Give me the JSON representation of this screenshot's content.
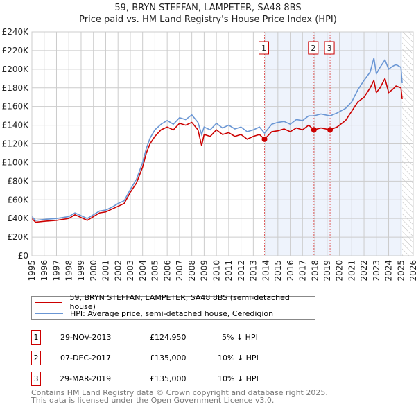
{
  "chart_data": {
    "type": "line",
    "title": "59, BRYN STEFFAN, LAMPETER, SA48 8BS",
    "subtitle": "Price paid vs. HM Land Registry's House Price Index (HPI)",
    "xlim": [
      1995,
      2026
    ],
    "ylim": [
      0,
      240000
    ],
    "x_ticks": [
      "1995",
      "1996",
      "1997",
      "1998",
      "1999",
      "2000",
      "2001",
      "2002",
      "2003",
      "2004",
      "2005",
      "2006",
      "2007",
      "2008",
      "2009",
      "2010",
      "2011",
      "2012",
      "2013",
      "2014",
      "2015",
      "2016",
      "2017",
      "2018",
      "2019",
      "2020",
      "2021",
      "2022",
      "2023",
      "2024",
      "2025",
      "2026"
    ],
    "y_ticks": [
      {
        "v": 0,
        "label": "£0"
      },
      {
        "v": 20000,
        "label": "£20K"
      },
      {
        "v": 40000,
        "label": "£40K"
      },
      {
        "v": 60000,
        "label": "£60K"
      },
      {
        "v": 80000,
        "label": "£80K"
      },
      {
        "v": 100000,
        "label": "£100K"
      },
      {
        "v": 120000,
        "label": "£120K"
      },
      {
        "v": 140000,
        "label": "£140K"
      },
      {
        "v": 160000,
        "label": "£160K"
      },
      {
        "v": 180000,
        "label": "£180K"
      },
      {
        "v": 200000,
        "label": "£200K"
      },
      {
        "v": 220000,
        "label": "£220K"
      },
      {
        "v": 240000,
        "label": "£240K"
      }
    ],
    "grid": true,
    "shaded_range": [
      2013.91,
      2025.1
    ],
    "hatched_from": 2025.1,
    "series": [
      {
        "name": "59, BRYN STEFFAN, LAMPETER, SA48 8BS (semi-detached house)",
        "color": "#cc0000",
        "x": [
          1995,
          1995.3,
          1996,
          1997,
          1998,
          1998.5,
          1999,
          1999.5,
          2000,
          2000.5,
          2001,
          2001.5,
          2002,
          2002.5,
          2003,
          2003.5,
          2004,
          2004.3,
          2004.6,
          2005,
          2005.5,
          2006,
          2006.5,
          2007,
          2007.5,
          2008,
          2008.5,
          2008.8,
          2009,
          2009.5,
          2010,
          2010.5,
          2011,
          2011.5,
          2012,
          2012.5,
          2013,
          2013.5,
          2013.91,
          2014.5,
          2015,
          2015.5,
          2016,
          2016.5,
          2017,
          2017.5,
          2017.93,
          2018.5,
          2019.24,
          2019.8,
          2020.5,
          2021,
          2021.5,
          2022,
          2022.5,
          2022.8,
          2023,
          2023.3,
          2023.7,
          2024,
          2024.3,
          2024.6,
          2025,
          2025.1
        ],
        "y": [
          40000,
          36000,
          37000,
          38000,
          40000,
          44000,
          41000,
          38000,
          42000,
          46000,
          47000,
          50000,
          53000,
          56000,
          68000,
          78000,
          95000,
          110000,
          120000,
          128000,
          135000,
          138000,
          135000,
          142000,
          140000,
          143000,
          135000,
          118000,
          130000,
          128000,
          135000,
          130000,
          132000,
          128000,
          130000,
          125000,
          128000,
          130000,
          124950,
          133000,
          134000,
          136000,
          133000,
          137000,
          135000,
          140000,
          135000,
          137000,
          135000,
          138000,
          145000,
          155000,
          165000,
          170000,
          180000,
          188000,
          175000,
          180000,
          190000,
          175000,
          178000,
          182000,
          180000,
          168000
        ]
      },
      {
        "name": "HPI: Average price, semi-detached house, Ceredigion",
        "color": "#6a96d4",
        "x": [
          1995,
          1995.3,
          1996,
          1997,
          1998,
          1998.5,
          1999,
          1999.5,
          2000,
          2000.5,
          2001,
          2001.5,
          2002,
          2002.5,
          2003,
          2003.5,
          2004,
          2004.3,
          2004.6,
          2005,
          2005.5,
          2006,
          2006.5,
          2007,
          2007.5,
          2008,
          2008.5,
          2008.8,
          2009,
          2009.5,
          2010,
          2010.5,
          2011,
          2011.5,
          2012,
          2012.5,
          2013,
          2013.5,
          2013.91,
          2014.5,
          2015,
          2015.5,
          2016,
          2016.5,
          2017,
          2017.5,
          2017.93,
          2018.5,
          2019.24,
          2019.8,
          2020.5,
          2021,
          2021.5,
          2022,
          2022.5,
          2022.8,
          2023,
          2023.3,
          2023.7,
          2024,
          2024.3,
          2024.6,
          2025,
          2025.1
        ],
        "y": [
          42000,
          38000,
          39000,
          40000,
          42000,
          46000,
          43000,
          40000,
          44000,
          48000,
          49000,
          52000,
          56000,
          59000,
          71000,
          82000,
          100000,
          115000,
          126000,
          135000,
          141000,
          145000,
          141000,
          148000,
          146000,
          151000,
          143000,
          130000,
          138000,
          135000,
          142000,
          137000,
          140000,
          136000,
          138000,
          133000,
          135000,
          138000,
          131500,
          141000,
          143000,
          144000,
          141000,
          146000,
          145000,
          150000,
          150000,
          152000,
          150000,
          153000,
          158000,
          165000,
          178000,
          188000,
          197000,
          212000,
          195000,
          202000,
          210000,
          200000,
          203000,
          205000,
          202000,
          185000
        ]
      }
    ],
    "markers": [
      {
        "label": "1",
        "x": 2013.91,
        "y": 124950
      },
      {
        "label": "2",
        "x": 2017.93,
        "y": 135000
      },
      {
        "label": "3",
        "x": 2019.24,
        "y": 135000
      }
    ]
  },
  "legend": {
    "property": "59, BRYN STEFFAN, LAMPETER, SA48 8BS (semi-detached house)",
    "hpi": "HPI: Average price, semi-detached house, Ceredigion"
  },
  "transactions": [
    {
      "n": "1",
      "date": "29-NOV-2013",
      "price": "£124,950",
      "hpi": "5% ↓ HPI"
    },
    {
      "n": "2",
      "date": "07-DEC-2017",
      "price": "£135,000",
      "hpi": "10% ↓ HPI"
    },
    {
      "n": "3",
      "date": "29-MAR-2019",
      "price": "£135,000",
      "hpi": "10% ↓ HPI"
    }
  ],
  "footer": {
    "line1": "Contains HM Land Registry data © Crown copyright and database right 2025.",
    "line2": "This data is licensed under the Open Government Licence v3.0."
  }
}
